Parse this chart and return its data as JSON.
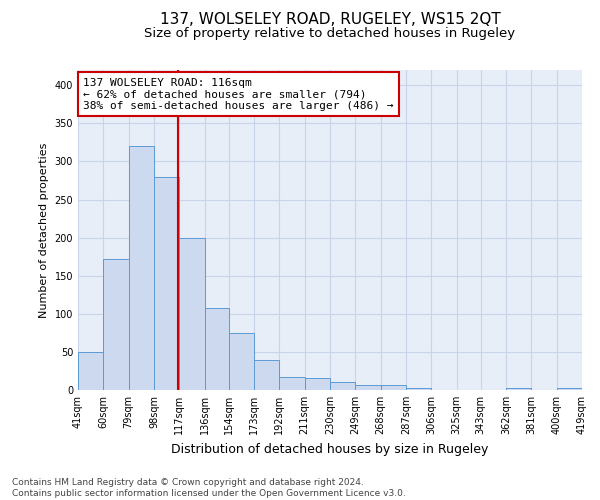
{
  "title": "137, WOLSELEY ROAD, RUGELEY, WS15 2QT",
  "subtitle": "Size of property relative to detached houses in Rugeley",
  "xlabel": "Distribution of detached houses by size in Rugeley",
  "ylabel": "Number of detached properties",
  "bin_labels": [
    "41sqm",
    "60sqm",
    "79sqm",
    "98sqm",
    "117sqm",
    "136sqm",
    "154sqm",
    "173sqm",
    "192sqm",
    "211sqm",
    "230sqm",
    "249sqm",
    "268sqm",
    "287sqm",
    "306sqm",
    "325sqm",
    "343sqm",
    "362sqm",
    "381sqm",
    "400sqm",
    "419sqm"
  ],
  "bar_values": [
    50,
    172,
    320,
    280,
    200,
    108,
    75,
    40,
    17,
    16,
    10,
    7,
    6,
    2,
    0,
    0,
    0,
    2,
    0,
    2
  ],
  "bin_edges": [
    41,
    60,
    79,
    98,
    117,
    136,
    154,
    173,
    192,
    211,
    230,
    249,
    268,
    287,
    306,
    325,
    343,
    362,
    381,
    400,
    419
  ],
  "bar_color": "#ccd9ee",
  "bar_edge_color": "#5b9bd5",
  "vline_x": 116,
  "vline_color": "#cc0000",
  "annotation_text": "137 WOLSELEY ROAD: 116sqm\n← 62% of detached houses are smaller (794)\n38% of semi-detached houses are larger (486) →",
  "annotation_box_color": "#ffffff",
  "annotation_box_edge_color": "#cc0000",
  "ylim": [
    0,
    420
  ],
  "yticks": [
    0,
    50,
    100,
    150,
    200,
    250,
    300,
    350,
    400
  ],
  "grid_color": "#c8d4e8",
  "bg_color": "#e8eef8",
  "footer_line1": "Contains HM Land Registry data © Crown copyright and database right 2024.",
  "footer_line2": "Contains public sector information licensed under the Open Government Licence v3.0.",
  "title_fontsize": 11,
  "subtitle_fontsize": 9.5,
  "xlabel_fontsize": 9,
  "ylabel_fontsize": 8,
  "tick_fontsize": 7,
  "footer_fontsize": 6.5
}
